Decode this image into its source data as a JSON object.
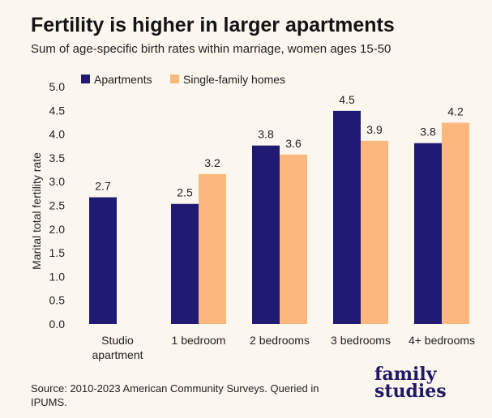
{
  "chart_data": {
    "type": "bar",
    "title": "Fertility is higher in larger apartments",
    "subtitle": "Sum of age-specific birth rates within marriage, women ages 15-50",
    "ylabel": "Marital total fertility rate",
    "xlabel": "",
    "ylim": [
      0,
      5.0
    ],
    "yticks": [
      "0.0",
      "0.5",
      "1.0",
      "1.5",
      "2.0",
      "2.5",
      "3.0",
      "3.5",
      "4.0",
      "4.5",
      "5.0"
    ],
    "categories": [
      [
        "Studio",
        "apartment"
      ],
      [
        "1 bedroom"
      ],
      [
        "2 bedrooms"
      ],
      [
        "3 bedrooms"
      ],
      [
        "4+ bedrooms"
      ]
    ],
    "series": [
      {
        "name": "Apartments",
        "color": "#201a72",
        "values": [
          2.67,
          2.53,
          3.76,
          4.49,
          3.81
        ],
        "labels": [
          "2.7",
          "2.5",
          "3.8",
          "4.5",
          "3.8"
        ]
      },
      {
        "name": "Single-family homes",
        "color": "#fcb77d",
        "values": [
          null,
          3.16,
          3.57,
          3.86,
          4.24
        ],
        "labels": [
          "",
          "3.2",
          "3.6",
          "3.9",
          "4.2"
        ]
      }
    ],
    "legend_position": "top-left",
    "grid": false
  },
  "source": "Source: 2010-2023 American Community Surveys. Queried in IPUMS.",
  "logo": {
    "line1": "family",
    "line2": "studies"
  }
}
